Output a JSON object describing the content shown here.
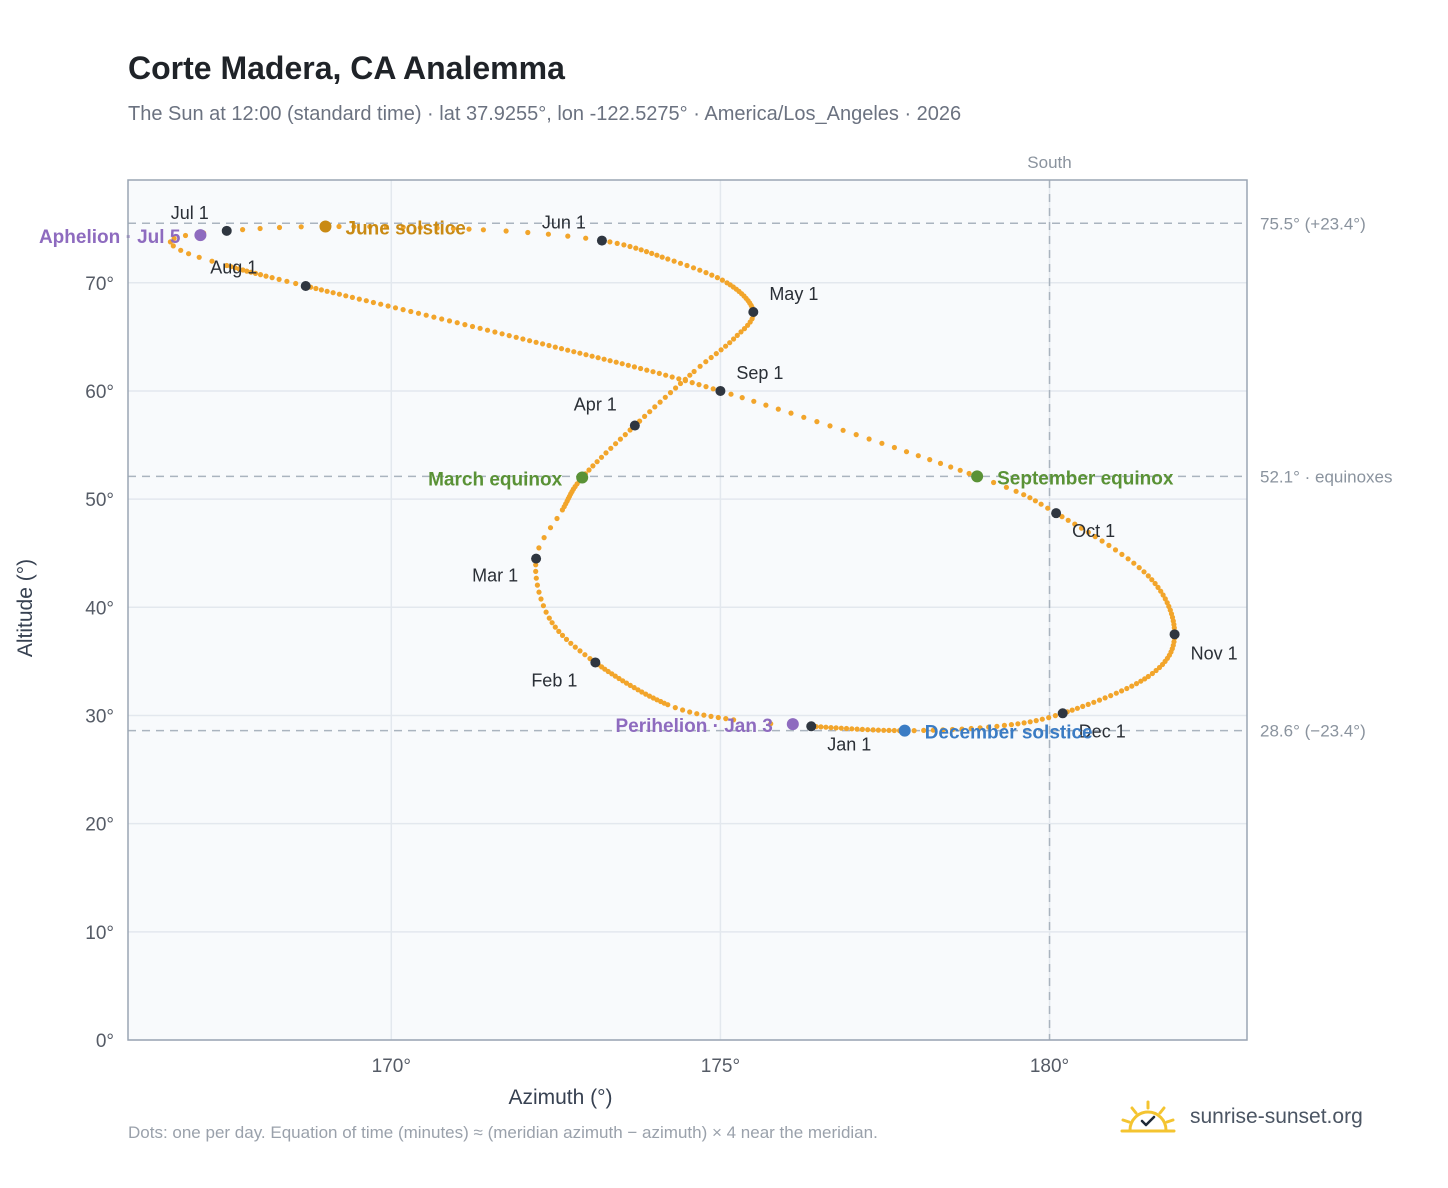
{
  "header": {
    "title": "Corte Madera, CA Analemma",
    "subtitle": "The Sun at 12:00 (standard time) · lat 37.9255°, lon -122.5275° · America/Los_Angeles · 2026"
  },
  "footer": {
    "note": "Dots: one per day. Equation of time (minutes) ≈ (meridian azimuth − azimuth) × 4 near the meridian.",
    "brand": "sunrise-sunset.org",
    "brand_icon": "sun-logo-icon"
  },
  "colors": {
    "curve": "#f2a52b",
    "month_marker": "#2f3640",
    "june_solstice": "#c98a14",
    "december_solstice": "#3b7cc4",
    "equinox": "#5a9236",
    "apsis": "#8e6bbf",
    "reference_line": "#aab4bf",
    "grid": "#e3e8ee",
    "plot_background": "#f8fafc",
    "frame": "#9aa5b4"
  },
  "chart_data": {
    "type": "scatter",
    "xlabel": "Azimuth (°)",
    "ylabel": "Altitude (°)",
    "xlim": [
      166,
      183
    ],
    "ylim": [
      0,
      79.5
    ],
    "x_ticks": [
      170,
      175,
      180
    ],
    "x_tick_labels": [
      "170°",
      "175°",
      "180°"
    ],
    "y_ticks": [
      0,
      10,
      20,
      30,
      40,
      50,
      60,
      70
    ],
    "y_tick_labels": [
      "0°",
      "10°",
      "20°",
      "30°",
      "40°",
      "50°",
      "60°",
      "70°"
    ],
    "grid": true,
    "series": [
      {
        "kind": "daily-dots",
        "points": [
          [
            176.38,
            29.0
          ],
          [
            173.1,
            34.9
          ],
          [
            172.2,
            44.5
          ],
          [
            173.7,
            56.8
          ],
          [
            175.5,
            67.3
          ],
          [
            173.2,
            73.9
          ],
          [
            167.5,
            74.8
          ],
          [
            168.7,
            69.7
          ],
          [
            175.0,
            60.0
          ],
          [
            180.1,
            48.7
          ],
          [
            181.9,
            37.5
          ],
          [
            180.2,
            30.2
          ],
          [
            176.38,
            29.0
          ]
        ],
        "waypoints": [
          [
            176.38,
            29.0
          ],
          [
            175.2,
            29.6
          ],
          [
            174.2,
            31.0
          ],
          [
            173.1,
            34.9
          ],
          [
            172.4,
            39.0
          ],
          [
            172.2,
            44.5
          ],
          [
            172.6,
            49.0
          ],
          [
            172.9,
            52.0
          ],
          [
            173.7,
            56.8
          ],
          [
            174.6,
            61.8
          ],
          [
            175.2,
            64.8
          ],
          [
            175.5,
            67.3
          ],
          [
            175.1,
            70.0
          ],
          [
            174.2,
            72.2
          ],
          [
            173.2,
            73.9
          ],
          [
            171.4,
            74.9
          ],
          [
            169.0,
            75.2
          ],
          [
            167.5,
            74.8
          ],
          [
            166.7,
            74.1
          ],
          [
            166.8,
            73.0
          ],
          [
            167.5,
            71.6
          ],
          [
            168.7,
            69.7
          ],
          [
            172.0,
            64.8
          ],
          [
            175.0,
            60.0
          ],
          [
            178.9,
            52.1
          ],
          [
            180.1,
            48.7
          ],
          [
            181.5,
            42.9
          ],
          [
            181.9,
            37.5
          ],
          [
            181.5,
            33.6
          ],
          [
            180.2,
            30.2
          ],
          [
            179.2,
            29.0
          ],
          [
            177.8,
            28.6
          ],
          [
            176.38,
            29.0
          ]
        ],
        "segment_days": [
          2,
          9,
          20,
          11,
          9,
          5,
          12,
          12,
          12,
          8,
          8,
          13,
          10,
          11,
          6,
          10,
          5,
          3,
          3,
          4,
          14,
          31,
          31,
          22,
          9,
          15,
          16,
          13,
          17,
          10,
          10,
          18
        ]
      }
    ],
    "month_markers": [
      {
        "label": "Jan 1",
        "az": 176.38,
        "alt": 29.0
      },
      {
        "label": "Feb 1",
        "az": 173.1,
        "alt": 34.9
      },
      {
        "label": "Mar 1",
        "az": 172.2,
        "alt": 44.5
      },
      {
        "label": "Apr 1",
        "az": 173.7,
        "alt": 56.8
      },
      {
        "label": "May 1",
        "az": 175.5,
        "alt": 67.3
      },
      {
        "label": "Jun 1",
        "az": 173.2,
        "alt": 73.9
      },
      {
        "label": "Jul 1",
        "az": 167.5,
        "alt": 74.8
      },
      {
        "label": "Aug 1",
        "az": 168.7,
        "alt": 69.7
      },
      {
        "label": "Sep 1",
        "az": 175.0,
        "alt": 60.0
      },
      {
        "label": "Oct 1",
        "az": 180.1,
        "alt": 48.7
      },
      {
        "label": "Nov 1",
        "az": 181.9,
        "alt": 37.5
      },
      {
        "label": "Dec 1",
        "az": 180.2,
        "alt": 30.2
      }
    ],
    "events": [
      {
        "label": "June solstice",
        "az": 169.0,
        "alt": 75.2,
        "color_key": "june_solstice"
      },
      {
        "label": "December solstice",
        "az": 177.8,
        "alt": 28.6,
        "color_key": "december_solstice"
      },
      {
        "label": "March equinox",
        "az": 172.9,
        "alt": 52.0,
        "color_key": "equinox"
      },
      {
        "label": "September equinox",
        "az": 178.9,
        "alt": 52.1,
        "color_key": "equinox"
      },
      {
        "label": "Aphelion · Jul 5",
        "az": 167.1,
        "alt": 74.4,
        "color_key": "apsis"
      },
      {
        "label": "Perihelion · Jan 3",
        "az": 176.1,
        "alt": 29.2,
        "color_key": "apsis"
      }
    ],
    "reference_lines": [
      {
        "axis": "y",
        "value": 75.5,
        "label": "75.5° (+23.4°)"
      },
      {
        "axis": "y",
        "value": 52.1,
        "label": "52.1° · equinoxes"
      },
      {
        "axis": "y",
        "value": 28.6,
        "label": "28.6° (−23.4°)"
      },
      {
        "axis": "x",
        "value": 180,
        "label": "South"
      }
    ]
  }
}
